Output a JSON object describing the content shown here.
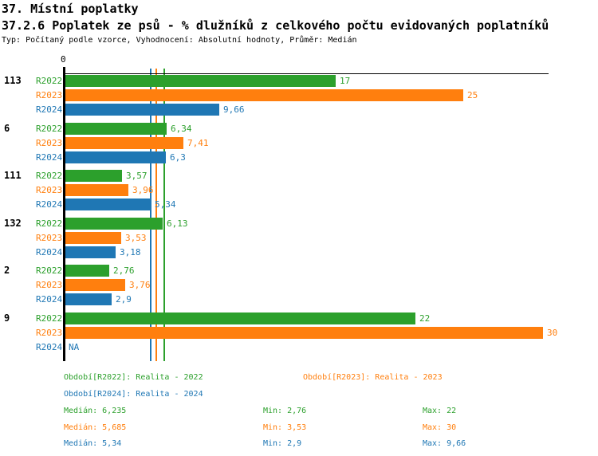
{
  "header": {
    "title_line1": "37. Místní poplatky",
    "title_line2": "37.2.6 Poplatek ze psů - % dlužníků z celkového počtu evidovaných poplatníků",
    "subtitle": "Typ: Počítaný podle vzorce, Vyhodnocení: Absolutní hodnoty, Průměr: Medián"
  },
  "colors": {
    "r2022": "#2ca02c",
    "r2023": "#ff7f0e",
    "r2024": "#1f77b4",
    "axis": "#000000"
  },
  "chart_data": {
    "type": "bar",
    "orientation": "horizontal",
    "title": "37.2.6 Poplatek ze psů - % dlužníků z celkového počtu evidovaných poplatníků",
    "xlim": [
      0,
      30
    ],
    "x_zero_label": "0",
    "grid": false,
    "categories": [
      "113",
      "6",
      "111",
      "132",
      "2",
      "9"
    ],
    "series": [
      {
        "name": "R2022",
        "color_key": "r2022",
        "values": [
          17,
          6.34,
          3.57,
          6.13,
          2.76,
          22
        ],
        "labels": [
          "17",
          "6,34",
          "3,57",
          "6,13",
          "2,76",
          "22"
        ],
        "median": 6.235
      },
      {
        "name": "R2023",
        "color_key": "r2023",
        "values": [
          25,
          7.41,
          3.96,
          3.53,
          3.76,
          30
        ],
        "labels": [
          "25",
          "7,41",
          "3,96",
          "3,53",
          "3,76",
          "30"
        ],
        "median": 5.685
      },
      {
        "name": "R2024",
        "color_key": "r2024",
        "values": [
          9.66,
          6.3,
          5.34,
          3.18,
          2.9,
          null
        ],
        "labels": [
          "9,66",
          "6,3",
          "5,34",
          "3,18",
          "2,9",
          "NA"
        ],
        "median": 5.34
      }
    ],
    "median_lines": [
      {
        "series": "R2024",
        "value": 5.34,
        "color_key": "r2024"
      },
      {
        "series": "R2023",
        "value": 5.685,
        "color_key": "r2023"
      },
      {
        "series": "R2022",
        "value": 6.235,
        "color_key": "r2022"
      }
    ]
  },
  "legend": {
    "entries": [
      {
        "text": "Období[R2022]: Realita - 2022",
        "color_key": "r2022"
      },
      {
        "text": "Období[R2023]: Realita - 2023",
        "color_key": "r2023"
      },
      {
        "text": "Období[R2024]: Realita - 2024",
        "color_key": "r2024"
      }
    ]
  },
  "stats": {
    "rows": [
      {
        "median": "Medián: 6,235",
        "min": "Min: 2,76",
        "max": "Max: 22",
        "color_key": "r2022"
      },
      {
        "median": "Medián: 5,685",
        "min": "Min: 3,53",
        "max": "Max: 30",
        "color_key": "r2023"
      },
      {
        "median": "Medián: 5,34",
        "min": "Min: 2,9",
        "max": "Max: 9,66",
        "color_key": "r2024"
      }
    ]
  }
}
